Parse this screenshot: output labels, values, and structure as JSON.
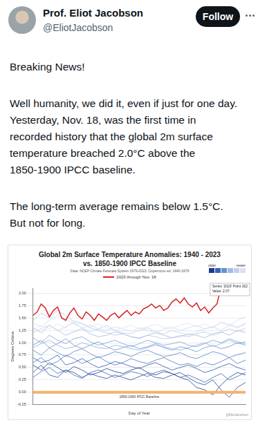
{
  "tweet": {
    "author": "Prof. Eliot Jacobson",
    "handle": "@EliotJacobson",
    "button": "Follow",
    "paragraphs": [
      [
        "Breaking News!"
      ],
      [
        "Well humanity, we did it, even if just for one day.",
        "Yesterday, Nov. 18, was the first time in",
        "recorded history that the global 2m surface",
        "temperature breached 2.0°C above the",
        "1850-1900 IPCC baseline."
      ],
      [
        "The long-term average remains below 1.5°C.",
        "But not for long."
      ]
    ]
  },
  "chart_data": {
    "type": "line",
    "title": [
      "Global 2m Surface Temperature Anomalies: 1940 - 2023",
      "vs. 1850-1900 IPCC Baseline"
    ],
    "subtitle": "Data: NCEP Climate Forecast System 1979-2023, Copernicus ed. 1940-1978",
    "x_label": "Day of Year",
    "y_label": "Degrees Celsius",
    "xlim": [
      1,
      365
    ],
    "ylim": [
      -0.25,
      2.1
    ],
    "yticks": [
      -0.25,
      {
        "value": 0,
        "label": "0.00"
      },
      0.25,
      {
        "value": 0.5,
        "label": "0.50"
      },
      0.75,
      {
        "value": 1,
        "label": "1.00"
      },
      1.25,
      {
        "value": 1.5,
        "label": "1.50"
      },
      1.75,
      {
        "value": 2,
        "label": "2.00"
      }
    ],
    "grid": true,
    "tick_labels": "y",
    "legend": "top",
    "x": [
      1,
      15,
      29,
      43,
      57,
      71,
      85,
      99,
      113,
      127,
      141,
      155,
      169,
      183,
      197,
      211,
      225,
      239,
      253,
      267,
      281,
      295,
      309,
      323,
      337,
      351,
      365
    ],
    "series": [
      {
        "color": "#1b3a8a",
        "values": [
          0.55,
          0.45,
          0.6,
          0.5,
          0.4,
          0.52,
          0.45,
          0.35,
          0.4,
          0.48,
          0.42,
          0.38,
          0.45,
          0.5,
          0.4,
          0.35,
          0.42,
          0.38,
          0.3,
          0.25,
          0.1,
          0.05,
          -0.05,
          0.15,
          0.3,
          0.4,
          0.35
        ]
      },
      {
        "color": "#23479a",
        "values": [
          0.4,
          0.55,
          0.35,
          0.3,
          0.45,
          0.4,
          0.3,
          0.38,
          0.32,
          0.28,
          0.35,
          0.3,
          0.25,
          0.32,
          0.38,
          0.3,
          0.28,
          0.35,
          0.4,
          0.3,
          0.2,
          0.15,
          0.25,
          0.05,
          -0.1,
          0.1,
          0.2
        ]
      },
      {
        "color": "#2c56a8",
        "values": [
          0.7,
          0.6,
          0.65,
          0.75,
          0.55,
          0.6,
          0.68,
          0.58,
          0.5,
          0.55,
          0.62,
          0.58,
          0.52,
          0.48,
          0.55,
          0.6,
          0.52,
          0.45,
          0.5,
          0.55,
          0.48,
          0.4,
          0.45,
          0.52,
          0.58,
          0.5,
          0.45
        ]
      },
      {
        "color": "#3765b5",
        "values": [
          0.3,
          0.42,
          0.5,
          0.38,
          0.45,
          0.35,
          0.28,
          0.4,
          0.45,
          0.38,
          0.3,
          0.35,
          0.42,
          0.38,
          0.32,
          0.4,
          0.45,
          0.38,
          0.3,
          0.35,
          0.28,
          0.2,
          0.3,
          0.38,
          0.25,
          0.32,
          0.4
        ]
      },
      {
        "color": "#4473c0",
        "values": [
          0.6,
          0.7,
          0.55,
          0.62,
          0.75,
          0.68,
          0.58,
          0.65,
          0.72,
          0.62,
          0.55,
          0.6,
          0.68,
          0.62,
          0.58,
          0.65,
          0.7,
          0.62,
          0.55,
          0.58,
          0.52,
          0.6,
          0.55,
          0.62,
          0.7,
          0.58,
          0.65
        ]
      },
      {
        "color": "#5481c9",
        "values": [
          0.85,
          0.75,
          0.9,
          0.8,
          0.72,
          0.82,
          0.88,
          0.78,
          0.7,
          0.75,
          0.82,
          0.78,
          0.72,
          0.8,
          0.85,
          0.78,
          0.72,
          0.75,
          0.8,
          0.72,
          0.68,
          0.75,
          0.82,
          0.78,
          0.7,
          0.76,
          0.8
        ]
      },
      {
        "color": "#6690d1",
        "values": [
          0.95,
          1.05,
          0.9,
          0.98,
          1.08,
          0.95,
          0.88,
          0.95,
          1.02,
          0.92,
          0.85,
          0.9,
          0.95,
          0.88,
          0.92,
          0.98,
          0.9,
          0.85,
          0.92,
          0.88,
          0.82,
          0.9,
          0.95,
          0.88,
          0.92,
          1.0,
          0.95
        ]
      },
      {
        "color": "#7a9ed8",
        "values": [
          1.1,
          1.0,
          1.15,
          1.05,
          0.98,
          1.08,
          1.12,
          1.02,
          0.95,
          1.0,
          1.05,
          0.98,
          0.92,
          0.98,
          1.05,
          1.0,
          0.95,
          0.98,
          1.02,
          0.95,
          0.92,
          0.98,
          1.05,
          1.0,
          1.08,
          1.02,
          0.98
        ]
      },
      {
        "color": "#8eabdd",
        "values": [
          0.9,
          0.98,
          1.05,
          0.95,
          0.88,
          0.92,
          1.0,
          0.95,
          0.9,
          0.88,
          0.95,
          0.92,
          0.88,
          0.85,
          0.9,
          0.95,
          0.92,
          0.88,
          0.85,
          0.9,
          0.95,
          1.0,
          0.92,
          0.98,
          1.05,
          0.98,
          1.02
        ]
      },
      {
        "color": "#a3b9e2",
        "values": [
          1.3,
          1.2,
          1.35,
          1.25,
          1.15,
          1.22,
          1.28,
          1.18,
          1.12,
          1.15,
          1.22,
          1.18,
          1.12,
          1.08,
          1.15,
          1.2,
          1.15,
          1.1,
          1.12,
          1.18,
          1.15,
          1.1,
          1.18,
          1.22,
          1.15,
          1.25,
          1.2
        ]
      },
      {
        "color": "#b5c5e6",
        "values": [
          1.45,
          1.6,
          1.5,
          1.65,
          1.55,
          1.42,
          1.38,
          1.3,
          1.25,
          1.2,
          1.15,
          1.18,
          1.12,
          1.1,
          1.15,
          1.12,
          1.08,
          1.1,
          1.15,
          1.12,
          1.18,
          1.22,
          1.15,
          1.2,
          1.28,
          1.22,
          1.3
        ]
      },
      {
        "color": "#c3cfe9",
        "values": [
          1.2,
          1.28,
          1.35,
          1.25,
          1.32,
          1.4,
          1.3,
          1.22,
          1.28,
          1.35,
          1.25,
          1.2,
          1.18,
          1.25,
          1.3,
          1.22,
          1.18,
          1.25,
          1.2,
          1.15,
          1.22,
          1.28,
          1.32,
          1.25,
          1.35,
          1.3,
          1.38
        ]
      },
      {
        "color": "#d0d9ed",
        "values": [
          1.4,
          1.32,
          1.45,
          1.55,
          1.48,
          1.38,
          1.3,
          1.35,
          1.28,
          1.25,
          1.32,
          1.28,
          1.22,
          1.3,
          1.25,
          1.2,
          1.28,
          1.32,
          1.25,
          1.3,
          1.35,
          1.28,
          1.32,
          1.4,
          1.35,
          1.45,
          1.52
        ]
      },
      {
        "color": "#dbe2f0",
        "values": [
          1.25,
          1.35,
          1.28,
          1.38,
          1.3,
          1.45,
          1.4,
          1.32,
          1.38,
          1.3,
          1.25,
          1.3,
          1.35,
          1.28,
          1.32,
          1.38,
          1.3,
          1.28,
          1.35,
          1.4,
          1.32,
          1.38,
          1.3,
          1.42,
          1.38,
          1.32,
          1.4
        ]
      },
      {
        "name": "2023 through Nov. 18",
        "color": "#d62222",
        "x": [
          1,
          8,
          15,
          22,
          29,
          36,
          43,
          50,
          57,
          64,
          71,
          78,
          85,
          92,
          99,
          106,
          113,
          120,
          127,
          134,
          141,
          148,
          155,
          162,
          169,
          176,
          183,
          190,
          197,
          204,
          211,
          218,
          225,
          232,
          239,
          246,
          253,
          260,
          267,
          274,
          281,
          288,
          295,
          302,
          309,
          316,
          322
        ],
        "values": [
          1.55,
          1.62,
          1.78,
          1.7,
          1.52,
          1.65,
          1.72,
          1.5,
          1.45,
          1.6,
          1.7,
          1.55,
          1.48,
          1.62,
          1.55,
          1.45,
          1.58,
          1.52,
          1.45,
          1.55,
          1.6,
          1.5,
          1.58,
          1.65,
          1.55,
          1.62,
          1.58,
          1.68,
          1.72,
          1.78,
          1.7,
          1.75,
          1.65,
          1.7,
          1.82,
          1.88,
          1.8,
          1.9,
          1.78,
          1.72,
          1.8,
          1.65,
          1.72,
          1.6,
          1.7,
          1.78,
          2.07
        ]
      }
    ],
    "baseline": {
      "label": "1850-1900 IPCC Baseline",
      "value": 0,
      "color": "#f6b26b"
    },
    "tooltip": {
      "lines": [
        "Series '2023' Point 322",
        "Value: 2.07"
      ],
      "x": 322,
      "y": 2.07
    },
    "color_legend": {
      "labels": [
        "older",
        "newer"
      ],
      "colors": [
        "#1b3a8a",
        "#3765b5",
        "#6690d1",
        "#a3b9e2",
        "#c3cfe9",
        "#dbe2f0"
      ]
    },
    "credit": "@EliotJacobson"
  }
}
